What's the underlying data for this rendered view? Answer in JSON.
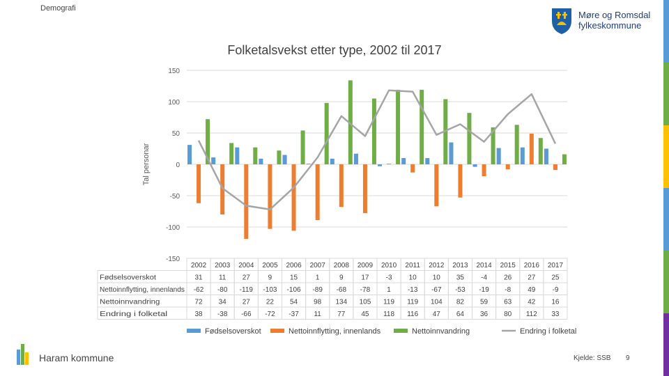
{
  "header": {
    "topic": "Demografi"
  },
  "logo": {
    "line1": "Møre og Romsdal",
    "line2": "fylkeskommune"
  },
  "footer": {
    "municipality": "Haram kommune",
    "source": "Kjelde: SSB",
    "page": "9"
  },
  "colors": {
    "fodsel": "#5b9bd5",
    "netto_inn": "#ed7d31",
    "netto_innv": "#70ad47",
    "endring": "#a5a5a5"
  },
  "chart_data": {
    "type": "bar",
    "title": "Folketalsvekst etter type, 2002 til 2017",
    "ylabel": "Tal personar",
    "ylim": [
      -150,
      150
    ],
    "yticks": [
      "150",
      "100",
      "50",
      "0",
      "-50",
      "-100",
      "-150"
    ],
    "categories": [
      "2002",
      "2003",
      "2004",
      "2005",
      "2006",
      "2007",
      "2008",
      "2009",
      "2010",
      "2011",
      "2012",
      "2013",
      "2014",
      "2015",
      "2016",
      "2017"
    ],
    "series": [
      {
        "name": "Fødselsoverskot",
        "label": "Fødselsoverskot",
        "kind": "bar",
        "values": [
          31,
          11,
          27,
          9,
          15,
          1,
          9,
          17,
          -3,
          10,
          10,
          35,
          -4,
          26,
          27,
          25
        ]
      },
      {
        "name": "Nettoinnflytting, innenlands",
        "label": "Nettoinnflytting, innenlands",
        "kind": "bar",
        "values": [
          -62,
          -80,
          -119,
          -103,
          -106,
          -89,
          -68,
          -78,
          1,
          -13,
          -67,
          -53,
          -19,
          -8,
          49,
          -9
        ]
      },
      {
        "name": "Nettoinnvandring",
        "label": "Nettoinnvandring",
        "kind": "bar",
        "values": [
          72,
          34,
          27,
          22,
          54,
          98,
          134,
          105,
          119,
          119,
          104,
          82,
          59,
          63,
          42,
          16
        ]
      },
      {
        "name": "Endring i folketal",
        "label": "Endring i folketal",
        "kind": "line",
        "values": [
          38,
          -38,
          -66,
          -72,
          -37,
          11,
          77,
          45,
          118,
          116,
          47,
          64,
          36,
          80,
          112,
          33
        ]
      }
    ]
  }
}
